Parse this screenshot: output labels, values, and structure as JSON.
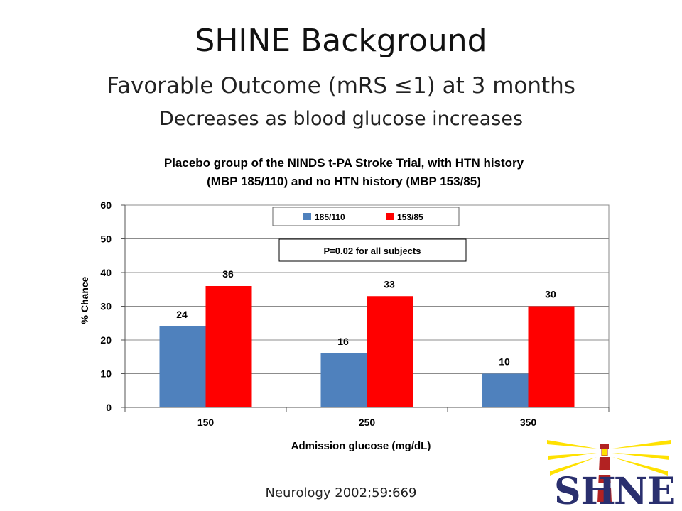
{
  "slide": {
    "title": "SHINE Background",
    "subtitle": "Favorable Outcome (mRS ≤1) at 3 months",
    "subtitle2": "Decreases as blood glucose increases",
    "citation": "Neurology 2002;59:669",
    "logo_text": "SHINE"
  },
  "chart_data": {
    "type": "bar",
    "title_line1": "Placebo group of the NINDS t-PA Stroke Trial, with HTN history",
    "title_line2": "(MBP 185/110) and no HTN history (MBP 153/85)",
    "xlabel": "Admission glucose (mg/dL)",
    "ylabel": "% Chance",
    "categories": [
      "150",
      "250",
      "350"
    ],
    "series": [
      {
        "name": "185/110",
        "color": "#4f81bd",
        "values": [
          24,
          16,
          10
        ]
      },
      {
        "name": "153/85",
        "color": "#ff0000",
        "values": [
          36,
          33,
          30
        ]
      }
    ],
    "ylim": [
      0,
      60
    ],
    "yticks": [
      0,
      10,
      20,
      30,
      40,
      50,
      60
    ],
    "grid": true,
    "legend": "top-center",
    "annotation": "P=0.02 for all subjects"
  }
}
